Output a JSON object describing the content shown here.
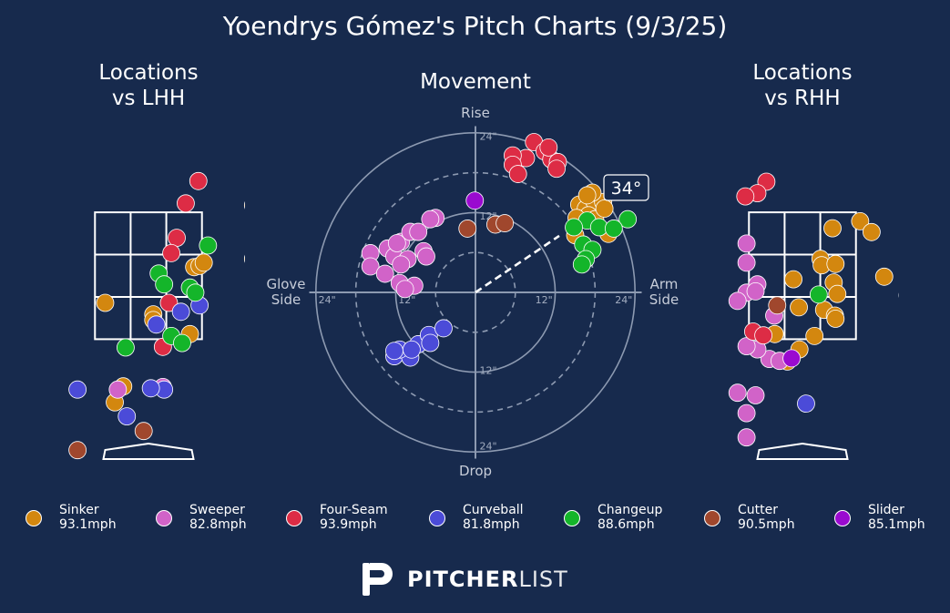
{
  "title": "Yoendrys Gómez's Pitch Charts (9/3/25)",
  "logo": {
    "bold": "PITCHER",
    "light": "LIST"
  },
  "pitch_types": [
    {
      "name": "Sinker",
      "speed": "93.1mph",
      "color": "#d3870f"
    },
    {
      "name": "Sweeper",
      "speed": "82.8mph",
      "color": "#d163c8"
    },
    {
      "name": "Four-Seam",
      "speed": "93.9mph",
      "color": "#dd2c45"
    },
    {
      "name": "Curveball",
      "speed": "81.8mph",
      "color": "#4b4bd8"
    },
    {
      "name": "Changeup",
      "speed": "88.6mph",
      "color": "#14b52a"
    },
    {
      "name": "Cutter",
      "speed": "90.5mph",
      "color": "#a0472d"
    },
    {
      "name": "Slider",
      "speed": "85.1mph",
      "color": "#9a0ad0"
    }
  ],
  "chart_data": [
    {
      "type": "scatter",
      "title": "Locations\nvs LHH",
      "note": "Strike zone 3x3 grid; horizontal position (ft, catcher view), height (ft)",
      "points": [
        {
          "pitch": "Sinker",
          "x": 1.74,
          "y": 3.78
        },
        {
          "pitch": "Sinker",
          "x": 0.76,
          "y": 2.81
        },
        {
          "pitch": "Sinker",
          "x": 1.74,
          "y": 2.94
        },
        {
          "pitch": "Sinker",
          "x": -0.72,
          "y": 2.25
        },
        {
          "pitch": "Sinker",
          "x": 0.08,
          "y": 2.07
        },
        {
          "pitch": "Sinker",
          "x": 0.08,
          "y": 1.98
        },
        {
          "pitch": "Sinker",
          "x": 0.85,
          "y": 2.83
        },
        {
          "pitch": "Sinker",
          "x": 0.92,
          "y": 2.88
        },
        {
          "pitch": "Sinker",
          "x": 0.69,
          "y": 1.76
        },
        {
          "pitch": "Sinker",
          "x": -0.42,
          "y": 0.94
        },
        {
          "pitch": "Sinker",
          "x": -0.56,
          "y": 0.69
        },
        {
          "pitch": "Sweeper",
          "x": -0.51,
          "y": 0.89
        },
        {
          "pitch": "Sweeper",
          "x": 0.24,
          "y": 0.93
        },
        {
          "pitch": "Four-Seam",
          "x": 0.83,
          "y": 4.16
        },
        {
          "pitch": "Four-Seam",
          "x": 0.62,
          "y": 3.81
        },
        {
          "pitch": "Four-Seam",
          "x": 0.47,
          "y": 3.27
        },
        {
          "pitch": "Four-Seam",
          "x": 0.38,
          "y": 3.03
        },
        {
          "pitch": "Four-Seam",
          "x": 0.34,
          "y": 2.25
        },
        {
          "pitch": "Four-Seam",
          "x": 0.24,
          "y": 1.56
        },
        {
          "pitch": "Curveball",
          "x": 0.85,
          "y": 2.21
        },
        {
          "pitch": "Curveball",
          "x": 0.54,
          "y": 2.11
        },
        {
          "pitch": "Curveball",
          "x": 0.13,
          "y": 1.91
        },
        {
          "pitch": "Curveball",
          "x": 0.26,
          "y": 0.89
        },
        {
          "pitch": "Curveball",
          "x": 0.04,
          "y": 0.91
        },
        {
          "pitch": "Curveball",
          "x": -1.18,
          "y": 0.89
        },
        {
          "pitch": "Curveball",
          "x": -0.36,
          "y": 0.47
        },
        {
          "pitch": "Changeup",
          "x": 0.99,
          "y": 3.15
        },
        {
          "pitch": "Changeup",
          "x": 0.17,
          "y": 2.71
        },
        {
          "pitch": "Changeup",
          "x": 0.26,
          "y": 2.54
        },
        {
          "pitch": "Changeup",
          "x": 0.69,
          "y": 2.49
        },
        {
          "pitch": "Changeup",
          "x": 0.78,
          "y": 2.41
        },
        {
          "pitch": "Changeup",
          "x": 0.38,
          "y": 1.73
        },
        {
          "pitch": "Changeup",
          "x": 0.56,
          "y": 1.62
        },
        {
          "pitch": "Changeup",
          "x": -0.38,
          "y": 1.55
        },
        {
          "pitch": "Cutter",
          "x": -0.08,
          "y": 0.24
        },
        {
          "pitch": "Cutter",
          "x": -1.18,
          "y": -0.06
        }
      ]
    },
    {
      "type": "scatter",
      "title": "Movement",
      "note": "Polar movement plot: horizontal break (inches, + = arm side), induced vertical break (inches, + = rise)",
      "axis_labels": {
        "top": "Rise",
        "bottom": "Drop",
        "left": "Glove\nSide",
        "right": "Arm\nSide"
      },
      "tick_labels": [
        "12\"",
        "24\""
      ],
      "arm_angle_label": "34°",
      "arm_angle_deg": 34,
      "points": [
        {
          "pitch": "Sinker",
          "x": 15.6,
          "y": 13.2
        },
        {
          "pitch": "Sinker",
          "x": 16.6,
          "y": 12.6
        },
        {
          "pitch": "Sinker",
          "x": 17.8,
          "y": 13.8
        },
        {
          "pitch": "Sinker",
          "x": 19.2,
          "y": 13.6
        },
        {
          "pitch": "Sinker",
          "x": 17.0,
          "y": 11.6
        },
        {
          "pitch": "Sinker",
          "x": 18.0,
          "y": 11.0
        },
        {
          "pitch": "Sinker",
          "x": 17.6,
          "y": 15.0
        },
        {
          "pitch": "Sinker",
          "x": 15.2,
          "y": 11.2
        },
        {
          "pitch": "Sinker",
          "x": 19.4,
          "y": 12.6
        },
        {
          "pitch": "Sinker",
          "x": 15.0,
          "y": 8.6
        },
        {
          "pitch": "Sinker",
          "x": 20.0,
          "y": 8.8
        },
        {
          "pitch": "Sinker",
          "x": 16.8,
          "y": 14.6
        },
        {
          "pitch": "Sweeper",
          "x": -15.8,
          "y": 5.9
        },
        {
          "pitch": "Sweeper",
          "x": -15.8,
          "y": 3.9
        },
        {
          "pitch": "Sweeper",
          "x": -13.2,
          "y": 6.6
        },
        {
          "pitch": "Sweeper",
          "x": -11.2,
          "y": 7.6
        },
        {
          "pitch": "Sweeper",
          "x": -9.8,
          "y": 9.1
        },
        {
          "pitch": "Sweeper",
          "x": -6.0,
          "y": 11.2
        },
        {
          "pitch": "Sweeper",
          "x": -6.8,
          "y": 11.0
        },
        {
          "pitch": "Sweeper",
          "x": -8.6,
          "y": 9.1
        },
        {
          "pitch": "Sweeper",
          "x": -12.2,
          "y": 5.4
        },
        {
          "pitch": "Sweeper",
          "x": -11.8,
          "y": 7.4
        },
        {
          "pitch": "Sweeper",
          "x": -7.8,
          "y": 6.2
        },
        {
          "pitch": "Sweeper",
          "x": -7.4,
          "y": 5.4
        },
        {
          "pitch": "Sweeper",
          "x": -10.2,
          "y": 5.0
        },
        {
          "pitch": "Sweeper",
          "x": -13.6,
          "y": 2.8
        },
        {
          "pitch": "Sweeper",
          "x": -11.4,
          "y": 1.4
        },
        {
          "pitch": "Sweeper",
          "x": -9.2,
          "y": 1.0
        },
        {
          "pitch": "Sweeper",
          "x": -10.6,
          "y": 0.5
        },
        {
          "pitch": "Sweeper",
          "x": -11.2,
          "y": 4.2
        },
        {
          "pitch": "Four-Seam",
          "x": 8.8,
          "y": 22.6
        },
        {
          "pitch": "Four-Seam",
          "x": 10.4,
          "y": 21.2
        },
        {
          "pitch": "Four-Seam",
          "x": 11.4,
          "y": 20.0
        },
        {
          "pitch": "Four-Seam",
          "x": 12.4,
          "y": 19.6
        },
        {
          "pitch": "Four-Seam",
          "x": 11.0,
          "y": 21.8
        },
        {
          "pitch": "Four-Seam",
          "x": 7.6,
          "y": 20.2
        },
        {
          "pitch": "Four-Seam",
          "x": 5.6,
          "y": 20.6
        },
        {
          "pitch": "Four-Seam",
          "x": 5.6,
          "y": 19.2
        },
        {
          "pitch": "Four-Seam",
          "x": 6.4,
          "y": 17.8
        },
        {
          "pitch": "Four-Seam",
          "x": 12.2,
          "y": 18.6
        },
        {
          "pitch": "Curveball",
          "x": -12.2,
          "y": -9.6
        },
        {
          "pitch": "Curveball",
          "x": -9.8,
          "y": -9.8
        },
        {
          "pitch": "Curveball",
          "x": -8.6,
          "y": -7.8
        },
        {
          "pitch": "Curveball",
          "x": -7.0,
          "y": -6.4
        },
        {
          "pitch": "Curveball",
          "x": -6.8,
          "y": -7.6
        },
        {
          "pitch": "Curveball",
          "x": -11.4,
          "y": -8.6
        },
        {
          "pitch": "Curveball",
          "x": -4.8,
          "y": -5.4
        },
        {
          "pitch": "Curveball",
          "x": -12.2,
          "y": -8.8
        },
        {
          "pitch": "Curveball",
          "x": -9.6,
          "y": -8.6
        },
        {
          "pitch": "Changeup",
          "x": 16.8,
          "y": 10.8
        },
        {
          "pitch": "Changeup",
          "x": 18.6,
          "y": 9.8
        },
        {
          "pitch": "Changeup",
          "x": 22.9,
          "y": 11.0
        },
        {
          "pitch": "Changeup",
          "x": 16.2,
          "y": 7.2
        },
        {
          "pitch": "Changeup",
          "x": 17.6,
          "y": 6.4
        },
        {
          "pitch": "Changeup",
          "x": 16.6,
          "y": 5.0
        },
        {
          "pitch": "Changeup",
          "x": 20.8,
          "y": 9.6
        },
        {
          "pitch": "Changeup",
          "x": 16.0,
          "y": 4.2
        },
        {
          "pitch": "Changeup",
          "x": 14.8,
          "y": 9.8
        },
        {
          "pitch": "Cutter",
          "x": -1.2,
          "y": 9.6
        },
        {
          "pitch": "Cutter",
          "x": 3.0,
          "y": 10.2
        },
        {
          "pitch": "Cutter",
          "x": 4.4,
          "y": 10.4
        },
        {
          "pitch": "Slider",
          "x": -0.1,
          "y": 13.8
        }
      ]
    },
    {
      "type": "scatter",
      "title": "Locations\nvs RHH",
      "note": "Strike zone 3x3 grid; horizontal position (ft, catcher view), height (ft)",
      "points": [
        {
          "pitch": "Sinker",
          "x": 0.5,
          "y": 3.42
        },
        {
          "pitch": "Sinker",
          "x": 0.96,
          "y": 3.53
        },
        {
          "pitch": "Sinker",
          "x": 1.15,
          "y": 3.36
        },
        {
          "pitch": "Sinker",
          "x": 1.36,
          "y": 2.66
        },
        {
          "pitch": "Sinker",
          "x": 1.75,
          "y": 2.37
        },
        {
          "pitch": "Sinker",
          "x": -0.15,
          "y": 2.62
        },
        {
          "pitch": "Sinker",
          "x": 0.3,
          "y": 2.94
        },
        {
          "pitch": "Sinker",
          "x": 0.32,
          "y": 2.84
        },
        {
          "pitch": "Sinker",
          "x": 0.55,
          "y": 2.86
        },
        {
          "pitch": "Sinker",
          "x": 0.52,
          "y": 2.57
        },
        {
          "pitch": "Sinker",
          "x": 0.58,
          "y": 2.39
        },
        {
          "pitch": "Sinker",
          "x": 0.36,
          "y": 2.14
        },
        {
          "pitch": "Sinker",
          "x": 0.54,
          "y": 2.05
        },
        {
          "pitch": "Sinker",
          "x": -0.06,
          "y": 2.18
        },
        {
          "pitch": "Sinker",
          "x": 0.55,
          "y": 2.0
        },
        {
          "pitch": "Sinker",
          "x": 0.2,
          "y": 1.73
        },
        {
          "pitch": "Sinker",
          "x": -0.46,
          "y": 1.76
        },
        {
          "pitch": "Sinker",
          "x": -0.05,
          "y": 1.52
        },
        {
          "pitch": "Sinker",
          "x": -0.25,
          "y": 1.33
        },
        {
          "pitch": "Sweeper",
          "x": -0.93,
          "y": 2.41
        },
        {
          "pitch": "Sweeper",
          "x": -0.75,
          "y": 2.54
        },
        {
          "pitch": "Sweeper",
          "x": -0.93,
          "y": 2.88
        },
        {
          "pitch": "Sweeper",
          "x": -0.78,
          "y": 2.43
        },
        {
          "pitch": "Sweeper",
          "x": -0.93,
          "y": 3.18
        },
        {
          "pitch": "Sweeper",
          "x": -1.08,
          "y": 2.28
        },
        {
          "pitch": "Sweeper",
          "x": -0.47,
          "y": 2.05
        },
        {
          "pitch": "Sweeper",
          "x": -0.55,
          "y": 1.37
        },
        {
          "pitch": "Sweeper",
          "x": -0.38,
          "y": 1.34
        },
        {
          "pitch": "Sweeper",
          "x": -0.75,
          "y": 1.52
        },
        {
          "pitch": "Sweeper",
          "x": -0.93,
          "y": 1.57
        },
        {
          "pitch": "Sweeper",
          "x": -0.78,
          "y": 0.8
        },
        {
          "pitch": "Sweeper",
          "x": -0.93,
          "y": 0.52
        },
        {
          "pitch": "Sweeper",
          "x": -1.08,
          "y": 0.84
        },
        {
          "pitch": "Sweeper",
          "x": -0.93,
          "y": 0.14
        },
        {
          "pitch": "Four-Seam",
          "x": -0.6,
          "y": 4.15
        },
        {
          "pitch": "Four-Seam",
          "x": -0.75,
          "y": 3.97
        },
        {
          "pitch": "Four-Seam",
          "x": -0.95,
          "y": 3.92
        },
        {
          "pitch": "Four-Seam",
          "x": -0.82,
          "y": 1.8
        },
        {
          "pitch": "Four-Seam",
          "x": -0.65,
          "y": 1.74
        },
        {
          "pitch": "Curveball",
          "x": 0.06,
          "y": 0.67
        },
        {
          "pitch": "Changeup",
          "x": 0.27,
          "y": 2.38
        },
        {
          "pitch": "Cutter",
          "x": -0.42,
          "y": 2.21
        },
        {
          "pitch": "Slider",
          "x": -0.18,
          "y": 1.38
        }
      ]
    }
  ]
}
